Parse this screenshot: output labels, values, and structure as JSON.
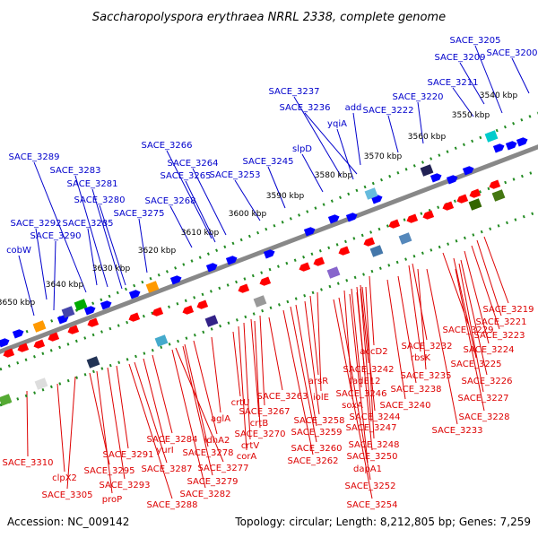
{
  "title": "Saccharopolyspora erythraea NRRL 2338, complete genome",
  "footer": {
    "accession": "Accession: NC_009142",
    "summary": "Topology: circular; Length: 8,212,805 bp; Genes: 7,259"
  },
  "colors": {
    "forward_label": "#0000cc",
    "reverse_label": "#dd0000",
    "forward_gene": "#0000ff",
    "reverse_gene": "#ff0000",
    "backbone": "#888888",
    "tick": "#228b22",
    "leader": "#000000"
  },
  "kbp_ticks": [
    "3540 kbp",
    "3550 kbp",
    "3560 kbp",
    "3570 kbp",
    "3580 kbp",
    "3590 kbp",
    "3600 kbp",
    "3610 kbp",
    "3620 kbp",
    "3630 kbp",
    "3640 kbp",
    "3650 kbp"
  ],
  "forward_labels": [
    "SACE_3205",
    "SACE_3200",
    "SACE_3209",
    "SACE_3211",
    "SACE_3220",
    "SACE_3237",
    "SACE_3236",
    "add",
    "SACE_3222",
    "yqiA",
    "slpD",
    "SACE_3245",
    "SACE_3266",
    "SACE_3264",
    "SACE_3265",
    "SACE_3253",
    "SACE_3289",
    "SACE_3283",
    "SACE_3281",
    "SACE_3280",
    "SACE_3268",
    "SACE_3275",
    "SACE_3292",
    "SACE_3285",
    "SACE_3290",
    "cobW"
  ],
  "reverse_labels": [
    "SACE_3219",
    "SACE_3221",
    "SACE_3229",
    "SACE_3223",
    "SACE_3232",
    "SACE_3224",
    "accD2",
    "rbsK",
    "SACE_3225",
    "SACE_3242",
    "fadE12",
    "SACE_3235",
    "SACE_3226",
    "arsR",
    "iolE",
    "SACE_3238",
    "SACE_3227",
    "SACE_3246",
    "SACE_3263",
    "soxA",
    "SACE_3240",
    "SACE_3228",
    "crtU",
    "SACE_3267",
    "SACE_3258",
    "SACE_3244",
    "SACE_3247",
    "SACE_3233",
    "aglA",
    "crtB",
    "SACE_3259",
    "SACE_3248",
    "SACE_3270",
    "SACE_3284",
    "idhA2",
    "crtV",
    "SACE_3260",
    "SACE_3250",
    "SACE_3291",
    "yurI",
    "SACE_3278",
    "corA",
    "SACE_3262",
    "dapA1",
    "SACE_3310",
    "SACE_3287",
    "SACE_3277",
    "SACE_3295",
    "clpX2",
    "SACE_3279",
    "SACE_3293",
    "SACE_3282",
    "SACE_3252",
    "SACE_3305",
    "proP",
    "SACE_3288",
    "SACE_3254"
  ]
}
